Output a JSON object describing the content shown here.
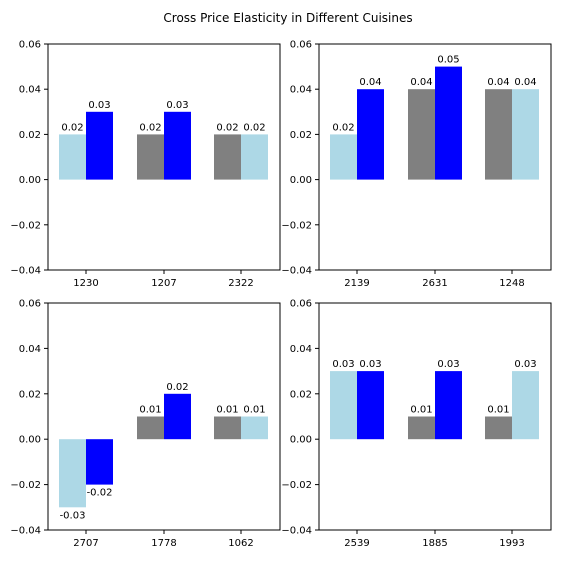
{
  "figure_title": "Cross Price Elasticity in Different Cuisines",
  "colors": {
    "light": "#add8e6",
    "gray": "#808080",
    "blue": "#0000ff",
    "axis": "#000000",
    "background": "#ffffff"
  },
  "chart_data": [
    {
      "type": "bar",
      "categories": [
        "1230",
        "1207",
        "2322"
      ],
      "ylim": [
        -0.04,
        0.06
      ],
      "yticks": [
        "−0.04",
        "−0.02",
        "0.00",
        "0.02",
        "0.04",
        "0.06"
      ],
      "ytick_values": [
        -0.04,
        -0.02,
        0.0,
        0.02,
        0.04,
        0.06
      ],
      "grid": false,
      "bars": [
        {
          "category": "1230",
          "left": {
            "value": 0.02,
            "label": "0.02",
            "color": "light"
          },
          "right": {
            "value": 0.03,
            "label": "0.03",
            "color": "blue"
          }
        },
        {
          "category": "1207",
          "left": {
            "value": 0.02,
            "label": "0.02",
            "color": "gray"
          },
          "right": {
            "value": 0.03,
            "label": "0.03",
            "color": "blue"
          }
        },
        {
          "category": "2322",
          "left": {
            "value": 0.02,
            "label": "0.02",
            "color": "gray"
          },
          "right": {
            "value": 0.02,
            "label": "0.02",
            "color": "light"
          }
        }
      ]
    },
    {
      "type": "bar",
      "categories": [
        "2139",
        "2631",
        "1248"
      ],
      "ylim": [
        -0.04,
        0.06
      ],
      "yticks": [
        "−0.04",
        "−0.02",
        "0.00",
        "0.02",
        "0.04",
        "0.06"
      ],
      "ytick_values": [
        -0.04,
        -0.02,
        0.0,
        0.02,
        0.04,
        0.06
      ],
      "grid": false,
      "bars": [
        {
          "category": "2139",
          "left": {
            "value": 0.02,
            "label": "0.02",
            "color": "light"
          },
          "right": {
            "value": 0.04,
            "label": "0.04",
            "color": "blue"
          }
        },
        {
          "category": "2631",
          "left": {
            "value": 0.04,
            "label": "0.04",
            "color": "gray"
          },
          "right": {
            "value": 0.05,
            "label": "0.05",
            "color": "blue"
          }
        },
        {
          "category": "1248",
          "left": {
            "value": 0.04,
            "label": "0.04",
            "color": "gray"
          },
          "right": {
            "value": 0.04,
            "label": "0.04",
            "color": "light"
          }
        }
      ]
    },
    {
      "type": "bar",
      "categories": [
        "2707",
        "1778",
        "1062"
      ],
      "ylim": [
        -0.04,
        0.06
      ],
      "yticks": [
        "−0.04",
        "−0.02",
        "0.00",
        "0.02",
        "0.04",
        "0.06"
      ],
      "ytick_values": [
        -0.04,
        -0.02,
        0.0,
        0.02,
        0.04,
        0.06
      ],
      "grid": false,
      "bars": [
        {
          "category": "2707",
          "left": {
            "value": -0.03,
            "label": "-0.03",
            "color": "light"
          },
          "right": {
            "value": -0.02,
            "label": "-0.02",
            "color": "blue"
          }
        },
        {
          "category": "1778",
          "left": {
            "value": 0.01,
            "label": "0.01",
            "color": "gray"
          },
          "right": {
            "value": 0.02,
            "label": "0.02",
            "color": "blue"
          }
        },
        {
          "category": "1062",
          "left": {
            "value": 0.01,
            "label": "0.01",
            "color": "gray"
          },
          "right": {
            "value": 0.01,
            "label": "0.01",
            "color": "light"
          }
        }
      ]
    },
    {
      "type": "bar",
      "categories": [
        "2539",
        "1885",
        "1993"
      ],
      "ylim": [
        -0.04,
        0.06
      ],
      "yticks": [
        "−0.04",
        "−0.02",
        "0.00",
        "0.02",
        "0.04",
        "0.06"
      ],
      "ytick_values": [
        -0.04,
        -0.02,
        0.0,
        0.02,
        0.04,
        0.06
      ],
      "grid": false,
      "bars": [
        {
          "category": "2539",
          "left": {
            "value": 0.03,
            "label": "0.03",
            "color": "light"
          },
          "right": {
            "value": 0.03,
            "label": "0.03",
            "color": "blue"
          }
        },
        {
          "category": "1885",
          "left": {
            "value": 0.01,
            "label": "0.01",
            "color": "gray"
          },
          "right": {
            "value": 0.03,
            "label": "0.03",
            "color": "blue"
          }
        },
        {
          "category": "1993",
          "left": {
            "value": 0.01,
            "label": "0.01",
            "color": "gray"
          },
          "right": {
            "value": 0.03,
            "label": "0.03",
            "color": "light"
          }
        }
      ]
    }
  ]
}
